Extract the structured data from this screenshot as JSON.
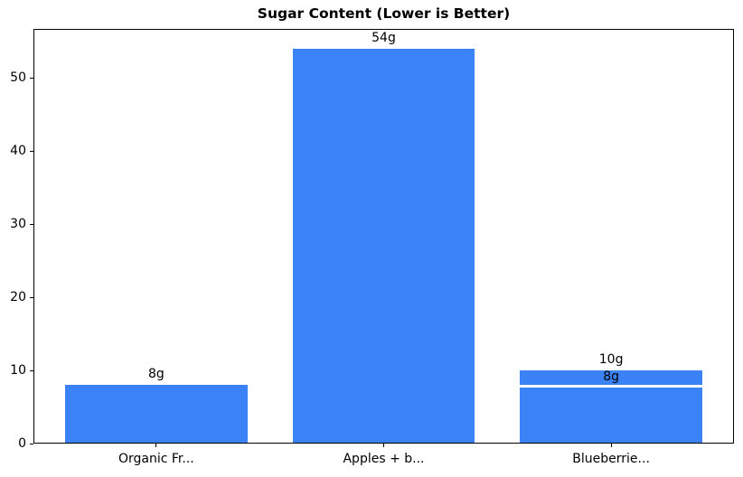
{
  "chart_data": {
    "type": "bar",
    "title": "Sugar Content (Lower is Better)",
    "categories": [
      "Organic Fr...",
      "Apples + b...",
      "Blueberrie..."
    ],
    "values": [
      8,
      54,
      10
    ],
    "bar_labels": [
      "8g",
      "54g",
      "10g"
    ],
    "overlay_bar": {
      "category_index": 2,
      "value": 8,
      "label": "8g"
    },
    "xlabel": "",
    "ylabel": "",
    "yticks": [
      0,
      10,
      20,
      30,
      40,
      50
    ],
    "ylim": [
      0,
      56.7
    ],
    "xlim": [
      -0.54,
      2.54
    ],
    "bar_width_fraction": 0.8,
    "grid": false,
    "legend": false,
    "bar_color": "#3b82f6",
    "axis_color": "#000000",
    "background_color": "#ffffff",
    "text_color": "#000000"
  }
}
